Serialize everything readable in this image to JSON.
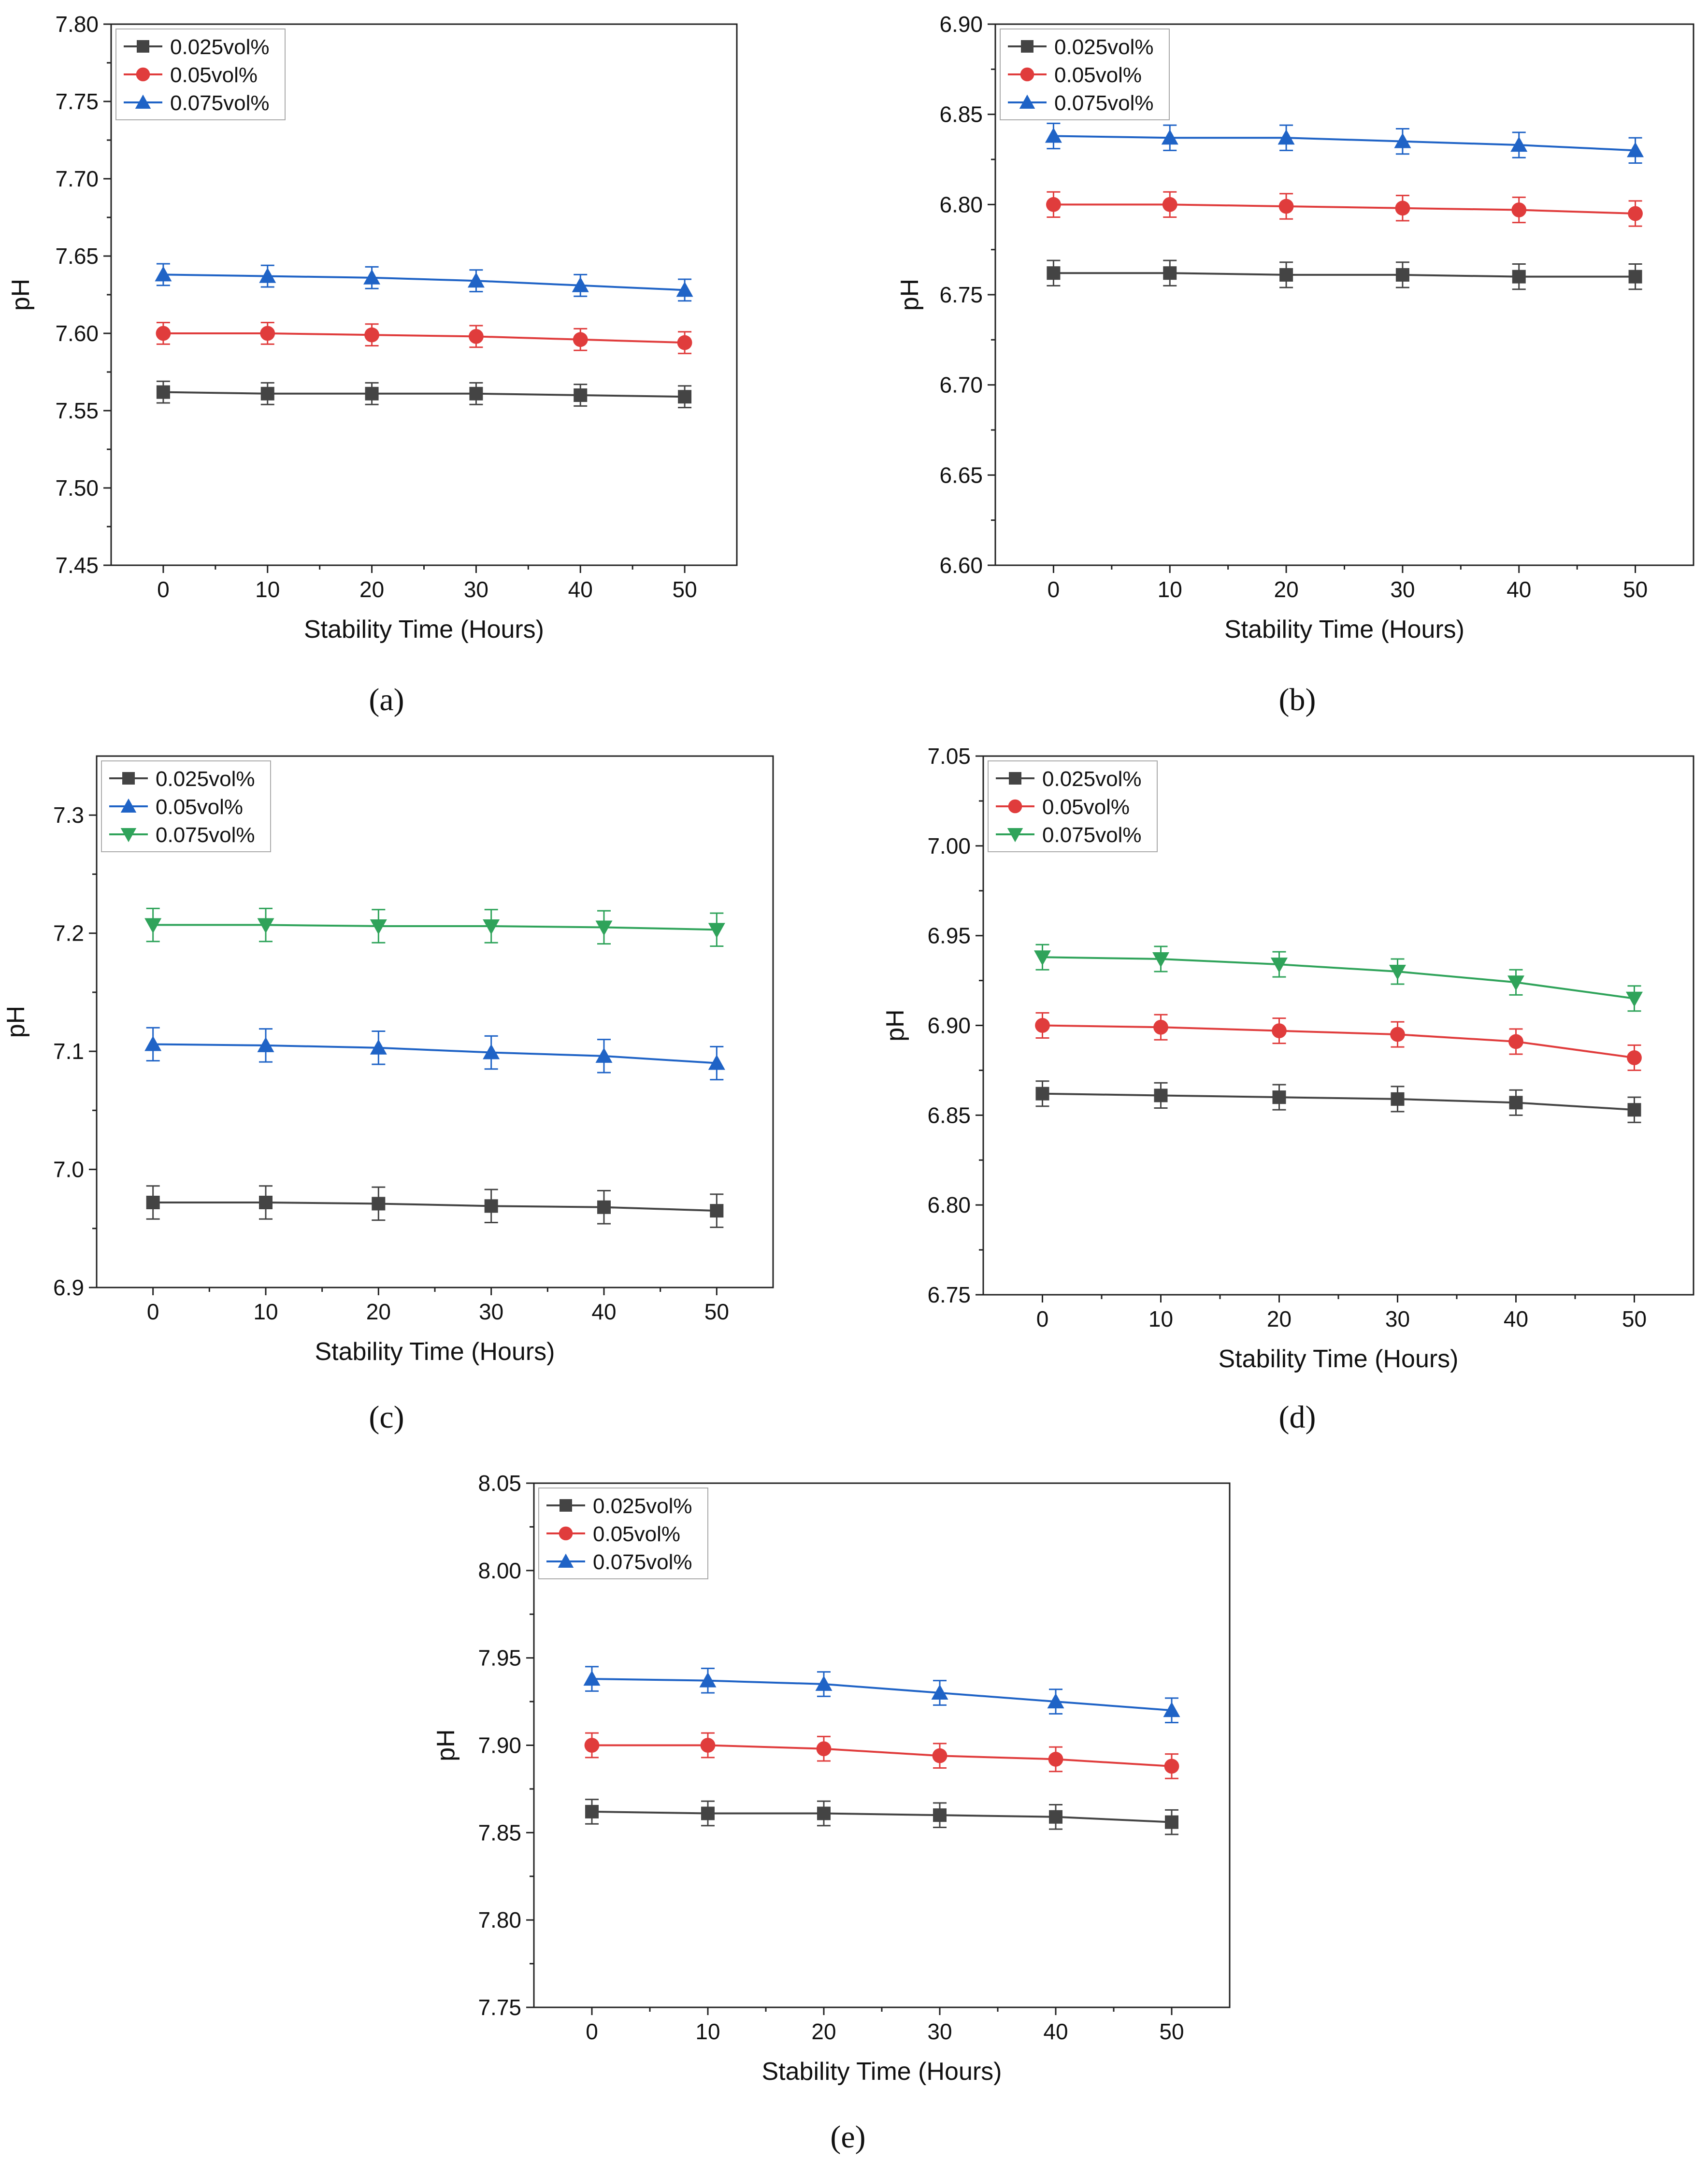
{
  "figure": {
    "panels": [
      "(a)",
      "(b)",
      "(c)",
      "(d)",
      "(e)"
    ]
  },
  "colors": {
    "black_series": "#444444",
    "red_series": "#e03c3c",
    "blue_series": "#1f63c6",
    "green_series": "#2fa35a",
    "axis": "#222222"
  },
  "chart_data": [
    {
      "panel": "(a)",
      "type": "line",
      "xlabel": "Stability Time (Hours)",
      "ylabel": "pH",
      "xlim": [
        -5,
        55
      ],
      "ylim": [
        7.45,
        7.8
      ],
      "x": [
        0,
        10,
        20,
        30,
        40,
        50
      ],
      "xticks": [
        "0",
        "10",
        "20",
        "30",
        "40",
        "50"
      ],
      "yticks": [
        "7.45",
        "7.50",
        "7.55",
        "7.60",
        "7.65",
        "7.70",
        "7.75",
        "7.80"
      ],
      "error": 0.007,
      "legend_position": "top-left",
      "series": [
        {
          "name": "0.025vol%",
          "marker": "square",
          "color": "#444444",
          "values": [
            7.562,
            7.561,
            7.561,
            7.561,
            7.56,
            7.559
          ]
        },
        {
          "name": "0.05vol%",
          "marker": "circle",
          "color": "#e03c3c",
          "values": [
            7.6,
            7.6,
            7.599,
            7.598,
            7.596,
            7.594
          ]
        },
        {
          "name": "0.075vol%",
          "marker": "triangle-up",
          "color": "#1f63c6",
          "values": [
            7.638,
            7.637,
            7.636,
            7.634,
            7.631,
            7.628
          ]
        }
      ]
    },
    {
      "panel": "(b)",
      "type": "line",
      "xlabel": "Stability Time (Hours)",
      "ylabel": "pH",
      "xlim": [
        -5,
        55
      ],
      "ylim": [
        6.6,
        6.9
      ],
      "x": [
        0,
        10,
        20,
        30,
        40,
        50
      ],
      "xticks": [
        "0",
        "10",
        "20",
        "30",
        "40",
        "50"
      ],
      "yticks": [
        "6.60",
        "6.65",
        "6.70",
        "6.75",
        "6.80",
        "6.85",
        "6.90"
      ],
      "error": 0.007,
      "legend_position": "top-left",
      "series": [
        {
          "name": "0.025vol%",
          "marker": "square",
          "color": "#444444",
          "values": [
            6.762,
            6.762,
            6.761,
            6.761,
            6.76,
            6.76
          ]
        },
        {
          "name": "0.05vol%",
          "marker": "circle",
          "color": "#e03c3c",
          "values": [
            6.8,
            6.8,
            6.799,
            6.798,
            6.797,
            6.795
          ]
        },
        {
          "name": "0.075vol%",
          "marker": "triangle-up",
          "color": "#1f63c6",
          "values": [
            6.838,
            6.837,
            6.837,
            6.835,
            6.833,
            6.83
          ]
        }
      ]
    },
    {
      "panel": "(c)",
      "type": "line",
      "xlabel": "Stability Time (Hours)",
      "ylabel": "pH",
      "xlim": [
        -5,
        55
      ],
      "ylim": [
        6.9,
        7.35
      ],
      "x": [
        0,
        10,
        20,
        30,
        40,
        50
      ],
      "xticks": [
        "0",
        "10",
        "20",
        "30",
        "40",
        "50"
      ],
      "yticks": [
        "6.9",
        "7.0",
        "7.1",
        "7.2",
        "7.3"
      ],
      "error": 0.014,
      "legend_position": "top-left",
      "series": [
        {
          "name": "0.025vol%",
          "marker": "square",
          "color": "#444444",
          "values": [
            6.972,
            6.972,
            6.971,
            6.969,
            6.968,
            6.965
          ]
        },
        {
          "name": "0.05vol%",
          "marker": "triangle-up",
          "color": "#1f63c6",
          "values": [
            7.106,
            7.105,
            7.103,
            7.099,
            7.096,
            7.09
          ]
        },
        {
          "name": "0.075vol%",
          "marker": "triangle-down",
          "color": "#2fa35a",
          "values": [
            7.207,
            7.207,
            7.206,
            7.206,
            7.205,
            7.203
          ]
        }
      ]
    },
    {
      "panel": "(d)",
      "type": "line",
      "xlabel": "Stability Time (Hours)",
      "ylabel": "pH",
      "xlim": [
        -5,
        55
      ],
      "ylim": [
        6.75,
        7.05
      ],
      "x": [
        0,
        10,
        20,
        30,
        40,
        50
      ],
      "xticks": [
        "0",
        "10",
        "20",
        "30",
        "40",
        "50"
      ],
      "yticks": [
        "6.75",
        "6.80",
        "6.85",
        "6.90",
        "6.95",
        "7.00",
        "7.05"
      ],
      "error": 0.007,
      "legend_position": "top-left",
      "series": [
        {
          "name": "0.025vol%",
          "marker": "square",
          "color": "#444444",
          "values": [
            6.862,
            6.861,
            6.86,
            6.859,
            6.857,
            6.853
          ]
        },
        {
          "name": "0.05vol%",
          "marker": "circle",
          "color": "#e03c3c",
          "values": [
            6.9,
            6.899,
            6.897,
            6.895,
            6.891,
            6.882
          ]
        },
        {
          "name": "0.075vol%",
          "marker": "triangle-down",
          "color": "#2fa35a",
          "values": [
            6.938,
            6.937,
            6.934,
            6.93,
            6.924,
            6.915
          ]
        }
      ]
    },
    {
      "panel": "(e)",
      "type": "line",
      "xlabel": "Stability Time (Hours)",
      "ylabel": "pH",
      "xlim": [
        -5,
        55
      ],
      "ylim": [
        7.75,
        8.05
      ],
      "x": [
        0,
        10,
        20,
        30,
        40,
        50
      ],
      "xticks": [
        "0",
        "10",
        "20",
        "30",
        "40",
        "50"
      ],
      "yticks": [
        "7.75",
        "7.80",
        "7.85",
        "7.90",
        "7.95",
        "8.00",
        "8.05"
      ],
      "error": 0.007,
      "legend_position": "top-left",
      "series": [
        {
          "name": "0.025vol%",
          "marker": "square",
          "color": "#444444",
          "values": [
            7.862,
            7.861,
            7.861,
            7.86,
            7.859,
            7.856
          ]
        },
        {
          "name": "0.05vol%",
          "marker": "circle",
          "color": "#e03c3c",
          "values": [
            7.9,
            7.9,
            7.898,
            7.894,
            7.892,
            7.888
          ]
        },
        {
          "name": "0.075vol%",
          "marker": "triangle-up",
          "color": "#1f63c6",
          "values": [
            7.938,
            7.937,
            7.935,
            7.93,
            7.925,
            7.92
          ]
        }
      ]
    }
  ]
}
